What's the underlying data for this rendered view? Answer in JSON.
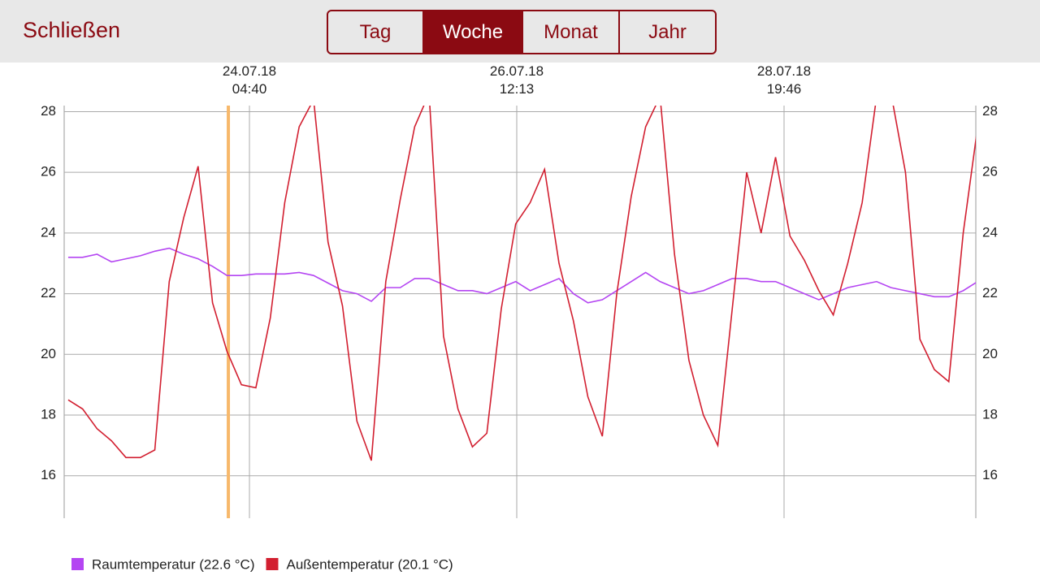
{
  "header": {
    "close": "Schließen",
    "segments": [
      "Tag",
      "Woche",
      "Monat",
      "Jahr"
    ],
    "selected": 1
  },
  "chart_data": {
    "type": "line",
    "x": [
      "2018-07-22T15:00",
      "2018-07-22T18:00",
      "2018-07-22T21:00",
      "2018-07-23T00:00",
      "2018-07-23T03:00",
      "2018-07-23T06:00",
      "2018-07-23T09:00",
      "2018-07-23T12:00",
      "2018-07-23T15:00",
      "2018-07-23T18:00",
      "2018-07-23T21:00",
      "2018-07-24T00:00",
      "2018-07-24T03:00",
      "2018-07-24T06:00",
      "2018-07-24T09:00",
      "2018-07-24T12:00",
      "2018-07-24T15:00",
      "2018-07-24T18:00",
      "2018-07-24T21:00",
      "2018-07-25T00:00",
      "2018-07-25T03:00",
      "2018-07-25T06:00",
      "2018-07-25T09:00",
      "2018-07-25T12:00",
      "2018-07-25T15:00",
      "2018-07-25T18:00",
      "2018-07-25T21:00",
      "2018-07-26T00:00",
      "2018-07-26T03:00",
      "2018-07-26T06:00",
      "2018-07-26T09:00",
      "2018-07-26T12:00",
      "2018-07-26T15:00",
      "2018-07-26T18:00",
      "2018-07-26T21:00",
      "2018-07-27T00:00",
      "2018-07-27T03:00",
      "2018-07-27T06:00",
      "2018-07-27T09:00",
      "2018-07-27T12:00",
      "2018-07-27T15:00",
      "2018-07-27T18:00",
      "2018-07-27T21:00",
      "2018-07-28T00:00",
      "2018-07-28T03:00",
      "2018-07-28T06:00",
      "2018-07-28T09:00",
      "2018-07-28T12:00",
      "2018-07-28T15:00",
      "2018-07-28T18:00",
      "2018-07-28T21:00",
      "2018-07-29T00:00",
      "2018-07-29T03:00",
      "2018-07-29T06:00",
      "2018-07-29T09:00",
      "2018-07-29T12:00",
      "2018-07-29T15:00",
      "2018-07-29T18:00",
      "2018-07-29T21:00",
      "2018-07-30T00:00",
      "2018-07-30T03:00",
      "2018-07-30T06:00",
      "2018-07-30T09:00",
      "2018-07-30T12:00"
    ],
    "series": [
      {
        "name": "Raumtemperatur (22.6 °C)",
        "color": "#b445f2",
        "values": [
          23.2,
          23.2,
          23.3,
          23.05,
          23.15,
          23.25,
          23.4,
          23.5,
          23.3,
          23.15,
          22.9,
          22.6,
          22.6,
          22.65,
          22.65,
          22.65,
          22.7,
          22.6,
          22.35,
          22.1,
          22.0,
          21.75,
          22.2,
          22.2,
          22.5,
          22.5,
          22.3,
          22.1,
          22.1,
          22.0,
          22.2,
          22.4,
          22.1,
          22.3,
          22.5,
          22.0,
          21.7,
          21.8,
          22.1,
          22.4,
          22.7,
          22.4,
          22.2,
          22.0,
          22.1,
          22.3,
          22.5,
          22.5,
          22.4,
          22.4,
          22.2,
          22.0,
          21.8,
          22.0,
          22.2,
          22.3,
          22.4,
          22.2,
          22.1,
          22.0,
          21.9,
          21.9,
          22.1,
          22.4
        ]
      },
      {
        "name": "Außentemperatur (20.1 °C)",
        "color": "#d21f30",
        "values": [
          18.5,
          18.2,
          17.55,
          17.15,
          16.6,
          16.6,
          16.85,
          22.4,
          24.5,
          26.2,
          21.7,
          20.1,
          19.0,
          18.9,
          21.2,
          25.0,
          27.5,
          28.4,
          23.7,
          21.6,
          17.8,
          16.5,
          22.4,
          25.1,
          27.5,
          28.6,
          20.6,
          18.2,
          16.95,
          17.4,
          21.5,
          24.3,
          25.0,
          26.1,
          23.0,
          21.1,
          18.6,
          17.3,
          22.0,
          25.2,
          27.5,
          28.5,
          23.3,
          19.8,
          18.0,
          17.0,
          21.5,
          26.0,
          24.0,
          26.5,
          23.9,
          23.1,
          22.1,
          21.3,
          23.0,
          25.0,
          28.5,
          28.6,
          26.0,
          20.5,
          19.5,
          19.1,
          24.0,
          27.5
        ]
      }
    ],
    "xlim": [
      "2018-07-22T14:10",
      "2018-07-30T11:37"
    ],
    "xticks": [
      {
        "value": "2018-07-24T04:40",
        "label": "24.07.18 04:40"
      },
      {
        "value": "2018-07-26T12:13",
        "label": "26.07.18 12:13"
      },
      {
        "value": "2018-07-28T19:46",
        "label": "28.07.18 19:46"
      }
    ],
    "ylim": [
      14.6,
      28.2
    ],
    "yticks": [
      16,
      18,
      20,
      22,
      24,
      26,
      28
    ],
    "grid": true,
    "cursor_x": "2018-07-24T00:17",
    "cursor_color": "#f7b86b"
  }
}
